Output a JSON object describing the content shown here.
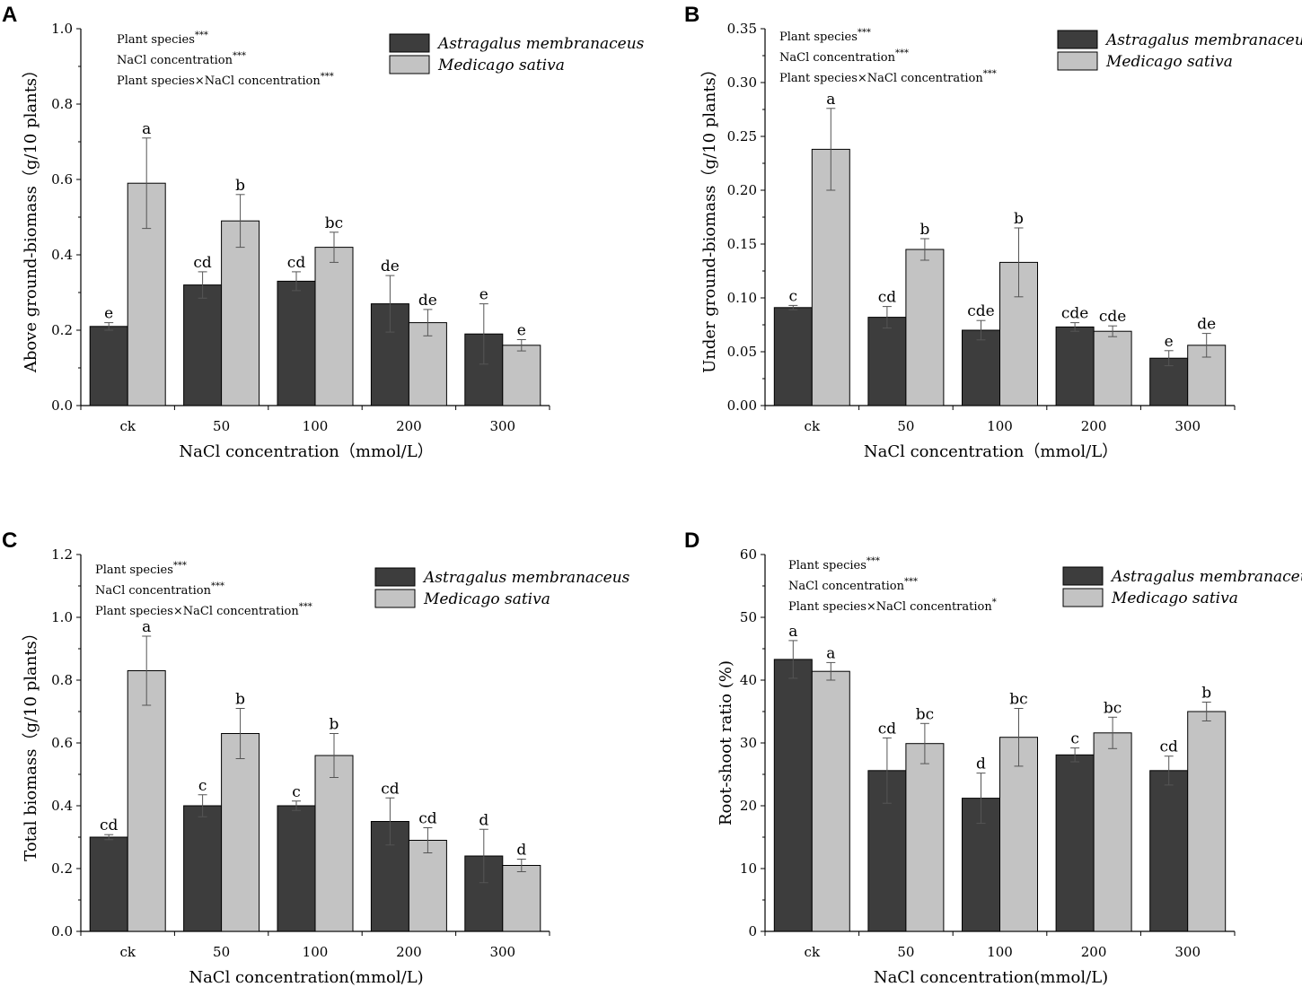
{
  "figure": {
    "legend_series": [
      "Astragalus membranaceus",
      "Medicago sativa"
    ],
    "colors": {
      "series0": "#3d3d3d",
      "series1": "#c3c3c3",
      "axis": "#000000",
      "bar_stroke": "#000000",
      "errbar": "#555555"
    }
  },
  "chart_data": [
    {
      "panel": "A",
      "type": "bar",
      "categories": [
        "ck",
        "50",
        "100",
        "200",
        "300"
      ],
      "xlabel": "NaCl concentration（mmol/L）",
      "ylabel": "Above ground-biomass（g/10 plants）",
      "ylim": [
        0,
        1.0
      ],
      "yticks": [
        0,
        0.2,
        0.4,
        0.6,
        0.8,
        1.0
      ],
      "ytick_labels": [
        "0.0",
        "0.2",
        "0.4",
        "0.6",
        "0.8",
        "1.0"
      ],
      "series": [
        {
          "name": "Astragalus membranaceus",
          "values": [
            0.21,
            0.32,
            0.33,
            0.27,
            0.19
          ],
          "errors": [
            0.01,
            0.035,
            0.025,
            0.075,
            0.08
          ],
          "letters": [
            "e",
            "cd",
            "cd",
            "de",
            "e"
          ]
        },
        {
          "name": "Medicago sativa",
          "values": [
            0.59,
            0.49,
            0.42,
            0.22,
            0.16
          ],
          "errors": [
            0.12,
            0.07,
            0.04,
            0.035,
            0.015
          ],
          "letters": [
            "a",
            "b",
            "bc",
            "de",
            "e"
          ]
        }
      ],
      "annotations": [
        {
          "text": "Plant species",
          "sig": "***"
        },
        {
          "text": "NaCl concentration",
          "sig": "***"
        },
        {
          "text": "Plant species×NaCl concentration",
          "sig": "***"
        }
      ]
    },
    {
      "panel": "B",
      "type": "bar",
      "categories": [
        "ck",
        "50",
        "100",
        "200",
        "300"
      ],
      "xlabel": "NaCl concentration（mmol/L）",
      "ylabel": "Under ground-biomass（g/10 plants）",
      "ylim": [
        0,
        0.35
      ],
      "yticks": [
        0,
        0.05,
        0.1,
        0.15,
        0.2,
        0.25,
        0.3,
        0.35
      ],
      "ytick_labels": [
        "0.00",
        "0.05",
        "0.10",
        "0.15",
        "0.20",
        "0.25",
        "0.30",
        "0.35"
      ],
      "series": [
        {
          "name": "Astragalus membranaceus",
          "values": [
            0.091,
            0.082,
            0.07,
            0.073,
            0.044
          ],
          "errors": [
            0.002,
            0.01,
            0.009,
            0.004,
            0.007
          ],
          "letters": [
            "c",
            "cd",
            "cde",
            "cde",
            "e"
          ]
        },
        {
          "name": "Medicago sativa",
          "values": [
            0.238,
            0.145,
            0.133,
            0.069,
            0.056
          ],
          "errors": [
            0.038,
            0.01,
            0.032,
            0.005,
            0.011
          ],
          "letters": [
            "a",
            "b",
            "b",
            "cde",
            "de"
          ]
        }
      ],
      "annotations": [
        {
          "text": "Plant species",
          "sig": "***"
        },
        {
          "text": "NaCl concentration",
          "sig": "***"
        },
        {
          "text": "Plant species×NaCl concentration",
          "sig": "***"
        }
      ]
    },
    {
      "panel": "C",
      "type": "bar",
      "categories": [
        "ck",
        "50",
        "100",
        "200",
        "300"
      ],
      "xlabel": "NaCl concentration(mmol/L)",
      "ylabel": "Total biomass（g/10 plants）",
      "ylim": [
        0,
        1.2
      ],
      "yticks": [
        0,
        0.2,
        0.4,
        0.6,
        0.8,
        1.0,
        1.2
      ],
      "ytick_labels": [
        "0.0",
        "0.2",
        "0.4",
        "0.6",
        "0.8",
        "1.0",
        "1.2"
      ],
      "series": [
        {
          "name": "Astragalus membranaceus",
          "values": [
            0.3,
            0.4,
            0.4,
            0.35,
            0.24
          ],
          "errors": [
            0.008,
            0.035,
            0.015,
            0.075,
            0.085
          ],
          "letters": [
            "cd",
            "c",
            "c",
            "cd",
            "d"
          ]
        },
        {
          "name": "Medicago sativa",
          "values": [
            0.83,
            0.63,
            0.56,
            0.29,
            0.21
          ],
          "errors": [
            0.11,
            0.08,
            0.07,
            0.04,
            0.02
          ],
          "letters": [
            "a",
            "b",
            "b",
            "cd",
            "d"
          ]
        }
      ],
      "annotations": [
        {
          "text": "Plant species",
          "sig": "***"
        },
        {
          "text": "NaCl concentration",
          "sig": "***"
        },
        {
          "text": "Plant species×NaCl concentration",
          "sig": "***"
        }
      ]
    },
    {
      "panel": "D",
      "type": "bar",
      "categories": [
        "ck",
        "50",
        "100",
        "200",
        "300"
      ],
      "xlabel": "NaCl concentration(mmol/L)",
      "ylabel": "Root-shoot ratio (%)",
      "ylim": [
        0,
        60
      ],
      "yticks": [
        0,
        10,
        20,
        30,
        40,
        50,
        60
      ],
      "ytick_labels": [
        "0",
        "10",
        "20",
        "30",
        "40",
        "50",
        "60"
      ],
      "series": [
        {
          "name": "Astragalus membranaceus",
          "values": [
            43.3,
            25.6,
            21.2,
            28.1,
            25.6
          ],
          "errors": [
            3.0,
            5.2,
            4.0,
            1.1,
            2.3
          ],
          "letters": [
            "a",
            "cd",
            "d",
            "c",
            "cd"
          ]
        },
        {
          "name": "Medicago sativa",
          "values": [
            41.4,
            29.9,
            30.9,
            31.6,
            35.0
          ],
          "errors": [
            1.4,
            3.2,
            4.6,
            2.5,
            1.5
          ],
          "letters": [
            "a",
            "bc",
            "bc",
            "bc",
            "b"
          ]
        }
      ],
      "annotations": [
        {
          "text": "Plant species",
          "sig": "***"
        },
        {
          "text": "NaCl concentration",
          "sig": "***"
        },
        {
          "text": "Plant species×NaCl concentration",
          "sig": "*"
        }
      ]
    }
  ]
}
